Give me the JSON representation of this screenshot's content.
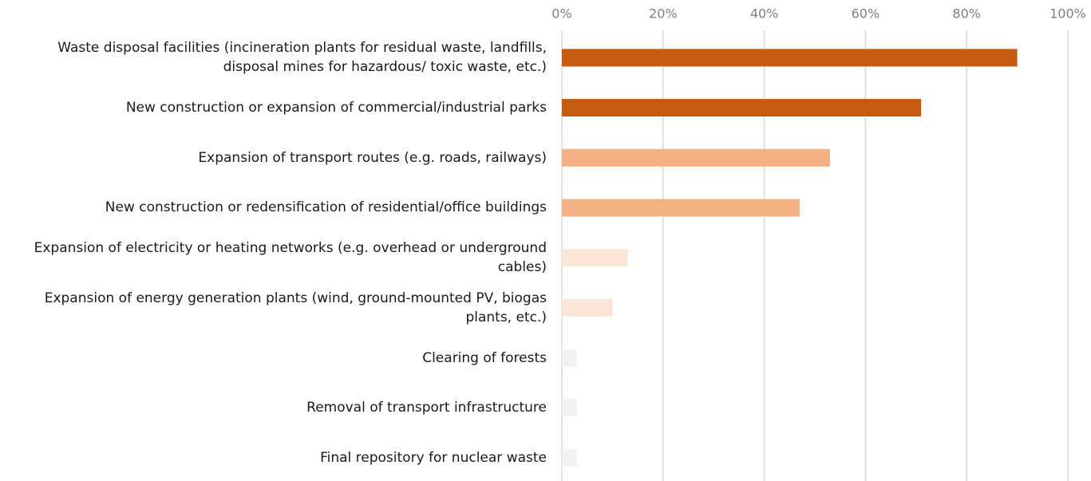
{
  "chart_data": {
    "type": "bar",
    "orientation": "horizontal",
    "categories": [
      "Waste disposal facilities (incineration plants for residual waste, landfills, disposal mines for hazardous/ toxic waste, etc.)",
      "New construction or expansion of commercial/industrial parks",
      "Expansion of transport routes (e.g. roads, railways)",
      "New construction or redensification of residential/office buildings",
      "Expansion of electricity or heating networks (e.g. overhead or underground cables)",
      "Expansion of energy generation plants (wind, ground-mounted PV, biogas plants, etc.)",
      "Clearing of forests",
      "Removal of transport infrastructure",
      "Final repository for nuclear waste"
    ],
    "values": [
      90,
      71,
      53,
      47,
      13,
      10,
      3,
      3,
      3
    ],
    "colors": [
      "#c55a11",
      "#c55a11",
      "#f4b183",
      "#f4b183",
      "#fbe5d6",
      "#fbe5d6",
      "#f2f2f2",
      "#f2f2f2",
      "#f2f2f2"
    ],
    "xlim": [
      0,
      100
    ],
    "xticks": [
      {
        "value": 0,
        "label": "0%"
      },
      {
        "value": 20,
        "label": "20%"
      },
      {
        "value": 40,
        "label": "40%"
      },
      {
        "value": 60,
        "label": "60%"
      },
      {
        "value": 80,
        "label": "80%"
      },
      {
        "value": 100,
        "label": "100%"
      }
    ],
    "grid": true
  }
}
